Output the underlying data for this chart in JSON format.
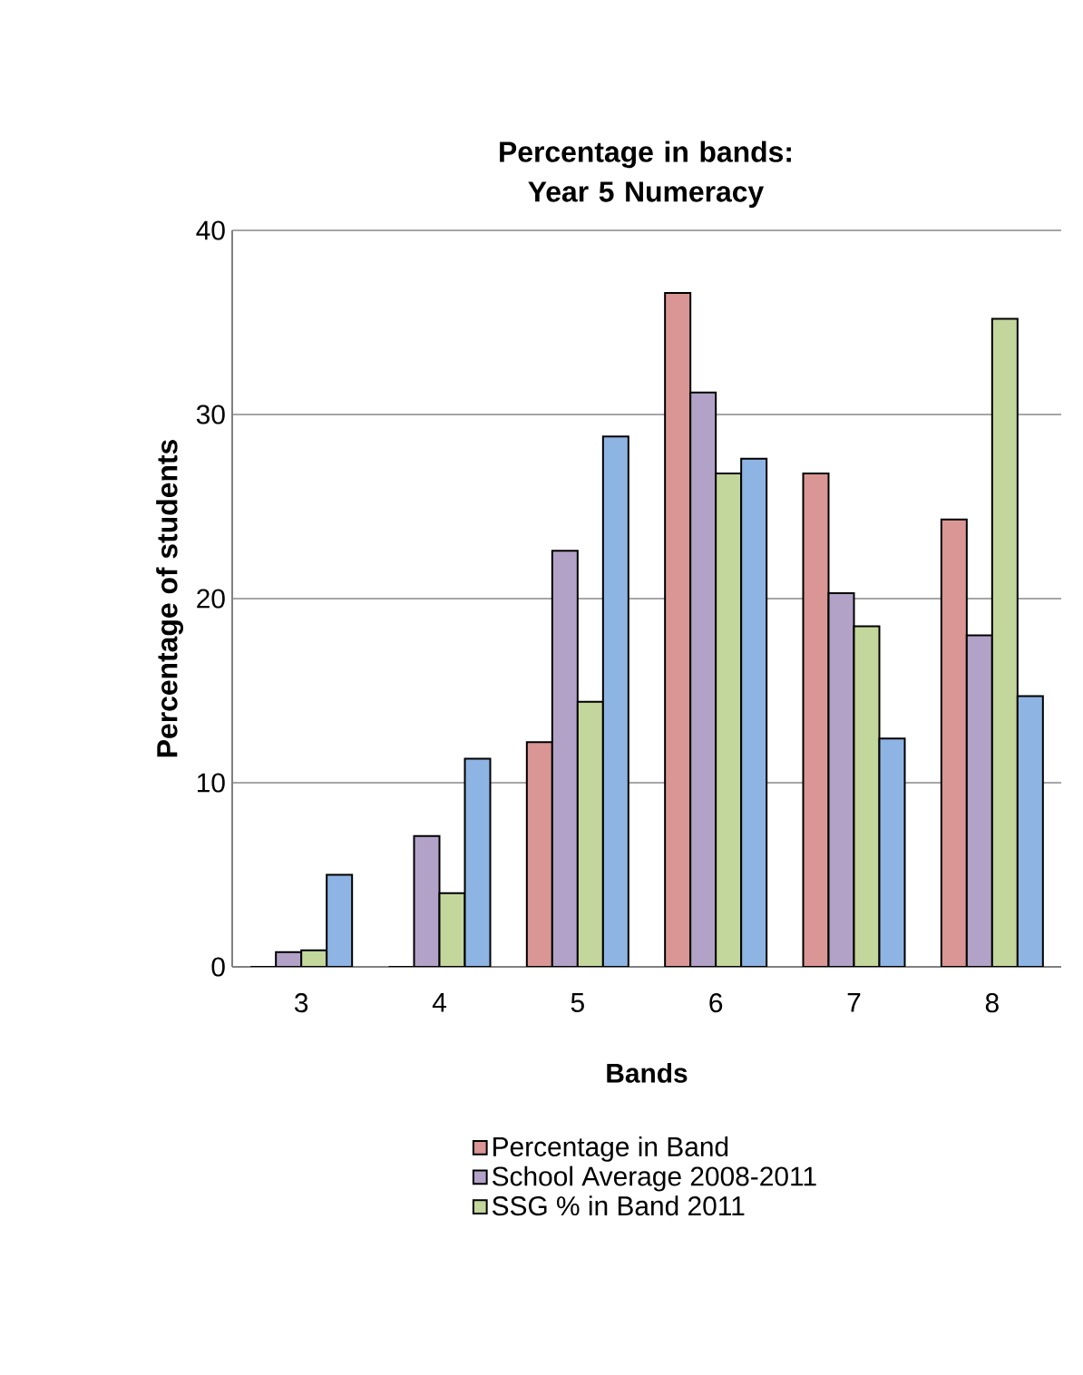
{
  "chart_data": {
    "type": "bar",
    "title": "Percentage in bands: Year 5 Numeracy",
    "xlabel": "Bands",
    "ylabel": "Percentage of students",
    "categories": [
      "3",
      "4",
      "5",
      "6",
      "7",
      "8"
    ],
    "series": [
      {
        "name": "Percentage in Band",
        "color": "#d99694",
        "values": [
          0,
          0,
          12.2,
          36.6,
          26.8,
          24.3
        ]
      },
      {
        "name": "School Average 2008-2011",
        "color": "#b3a2c7",
        "values": [
          0.8,
          7.1,
          22.6,
          31.2,
          20.3,
          18.0
        ]
      },
      {
        "name": "SSG % in Band 2011",
        "color": "#c3d69b",
        "values": [
          0.9,
          4.0,
          14.4,
          26.8,
          18.5,
          35.2
        ]
      },
      {
        "color": "#8eb4e3",
        "values": [
          5.0,
          11.3,
          28.8,
          27.6,
          12.4,
          14.7
        ]
      }
    ],
    "ylim": [
      0,
      40
    ],
    "yticks": [
      0,
      10,
      20,
      30,
      40
    ],
    "grid": "y",
    "legend": "bottom"
  }
}
